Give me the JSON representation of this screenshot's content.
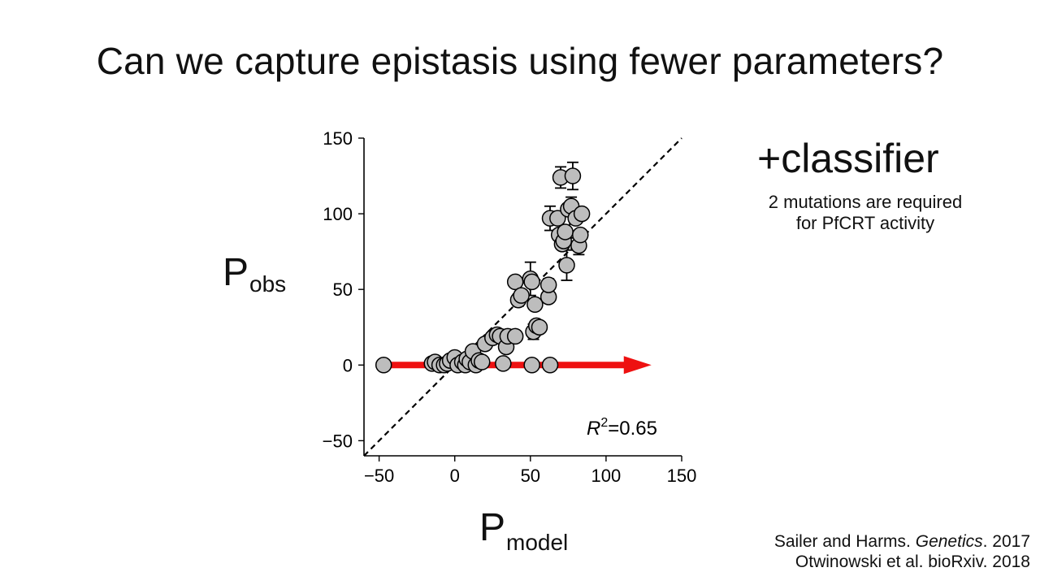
{
  "slide": {
    "title": "Can we capture epistasis using fewer parameters?",
    "classifier_heading": "+classifier",
    "classifier_note_line1": "2 mutations are required",
    "classifier_note_line2": "for PfCRT activity",
    "citation1_authors": "Sailer and Harms. ",
    "citation1_journal": "Genetics",
    "citation1_year": ". 2017",
    "citation2": "Otwinowski et al. bioRxiv. 2018"
  },
  "chart_data": {
    "type": "scatter",
    "ylabel_main": "P",
    "ylabel_sub": "obs",
    "xlabel_main": "P",
    "xlabel_sub": "model",
    "xlim": [
      -60,
      150
    ],
    "ylim": [
      -60,
      150
    ],
    "xticks": [
      -50,
      0,
      50,
      100,
      150
    ],
    "yticks": [
      -50,
      0,
      50,
      100,
      150
    ],
    "xtick_labels": [
      "−50",
      "0",
      "50",
      "100",
      "150"
    ],
    "ytick_labels": [
      "−50",
      "0",
      "50",
      "100",
      "150"
    ],
    "r2_label": "R",
    "r2_sup": "2",
    "r2_value": "=0.65",
    "reference_line": "y = x (dashed)",
    "arrow": {
      "from": [
        -47,
        0
      ],
      "to": [
        130,
        0
      ],
      "color": "#ee1111"
    },
    "marker_color": "#bdbdbd",
    "points": [
      [
        -47,
        0
      ],
      [
        -15,
        1
      ],
      [
        -13,
        2
      ],
      [
        -10,
        0
      ],
      [
        -7,
        0
      ],
      [
        -5,
        1
      ],
      [
        -3,
        3
      ],
      [
        0,
        5
      ],
      [
        2,
        0
      ],
      [
        5,
        2
      ],
      [
        7,
        0
      ],
      [
        8,
        4
      ],
      [
        10,
        2
      ],
      [
        12,
        9
      ],
      [
        14,
        0
      ],
      [
        16,
        3
      ],
      [
        18,
        2
      ],
      [
        20,
        14
      ],
      [
        25,
        18
      ],
      [
        28,
        20
      ],
      [
        30,
        19
      ],
      [
        32,
        1
      ],
      [
        34,
        12
      ],
      [
        35,
        19
      ],
      [
        40,
        19
      ],
      [
        40,
        55
      ],
      [
        42,
        43
      ],
      [
        44,
        46
      ],
      [
        50,
        57
      ],
      [
        51,
        55
      ],
      [
        51,
        0
      ],
      [
        52,
        22
      ],
      [
        53,
        40
      ],
      [
        54,
        26
      ],
      [
        56,
        25
      ],
      [
        62,
        45
      ],
      [
        62,
        53
      ],
      [
        63,
        0
      ],
      [
        63,
        97
      ],
      [
        68,
        97
      ],
      [
        69,
        86
      ],
      [
        70,
        124
      ],
      [
        71,
        80
      ],
      [
        72,
        82
      ],
      [
        73,
        88
      ],
      [
        74,
        66
      ],
      [
        75,
        103
      ],
      [
        77,
        105
      ],
      [
        78,
        125
      ],
      [
        80,
        97
      ],
      [
        82,
        79
      ],
      [
        83,
        86
      ],
      [
        84,
        100
      ]
    ],
    "error_bars": [
      [
        40,
        55,
        3
      ],
      [
        42,
        43,
        4
      ],
      [
        50,
        57,
        11
      ],
      [
        52,
        22,
        5
      ],
      [
        62,
        53,
        4
      ],
      [
        63,
        97,
        8
      ],
      [
        70,
        124,
        7
      ],
      [
        74,
        66,
        10
      ],
      [
        76,
        92,
        8
      ],
      [
        77,
        105,
        6
      ],
      [
        78,
        125,
        9
      ],
      [
        82,
        79,
        6
      ]
    ]
  }
}
